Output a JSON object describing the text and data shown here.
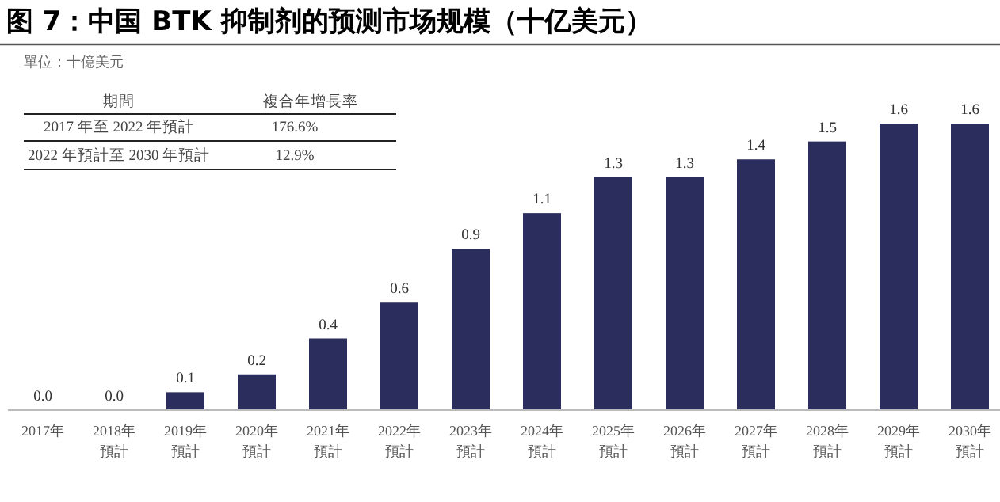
{
  "chart_data": {
    "type": "bar",
    "title": "图 7：中国 BTK 抑制剂的预测市场规模（十亿美元）",
    "categories": [
      "2017年",
      "2018年預計",
      "2019年預計",
      "2020年預計",
      "2021年預計",
      "2022年預計",
      "2023年預計",
      "2024年預計",
      "2025年預計",
      "2026年預計",
      "2027年預計",
      "2028年預計",
      "2029年預計",
      "2030年預計"
    ],
    "values": [
      0.0,
      0.0,
      0.1,
      0.2,
      0.4,
      0.6,
      0.9,
      1.1,
      1.3,
      1.3,
      1.4,
      1.5,
      1.6,
      1.6
    ],
    "value_labels": [
      "0.0",
      "0.0",
      "0.1",
      "0.2",
      "0.4",
      "0.6",
      "0.9",
      "1.1",
      "1.3",
      "1.3",
      "1.4",
      "1.5",
      "1.6",
      "1.6"
    ],
    "color": "#2b2d5c",
    "annotations": [
      "單位：十億美元",
      "期間",
      "複合年增長率",
      "2017 年至 2022 年預計",
      "176.6%",
      "2022 年預計至 2030 年預計",
      "12.9%"
    ]
  }
}
